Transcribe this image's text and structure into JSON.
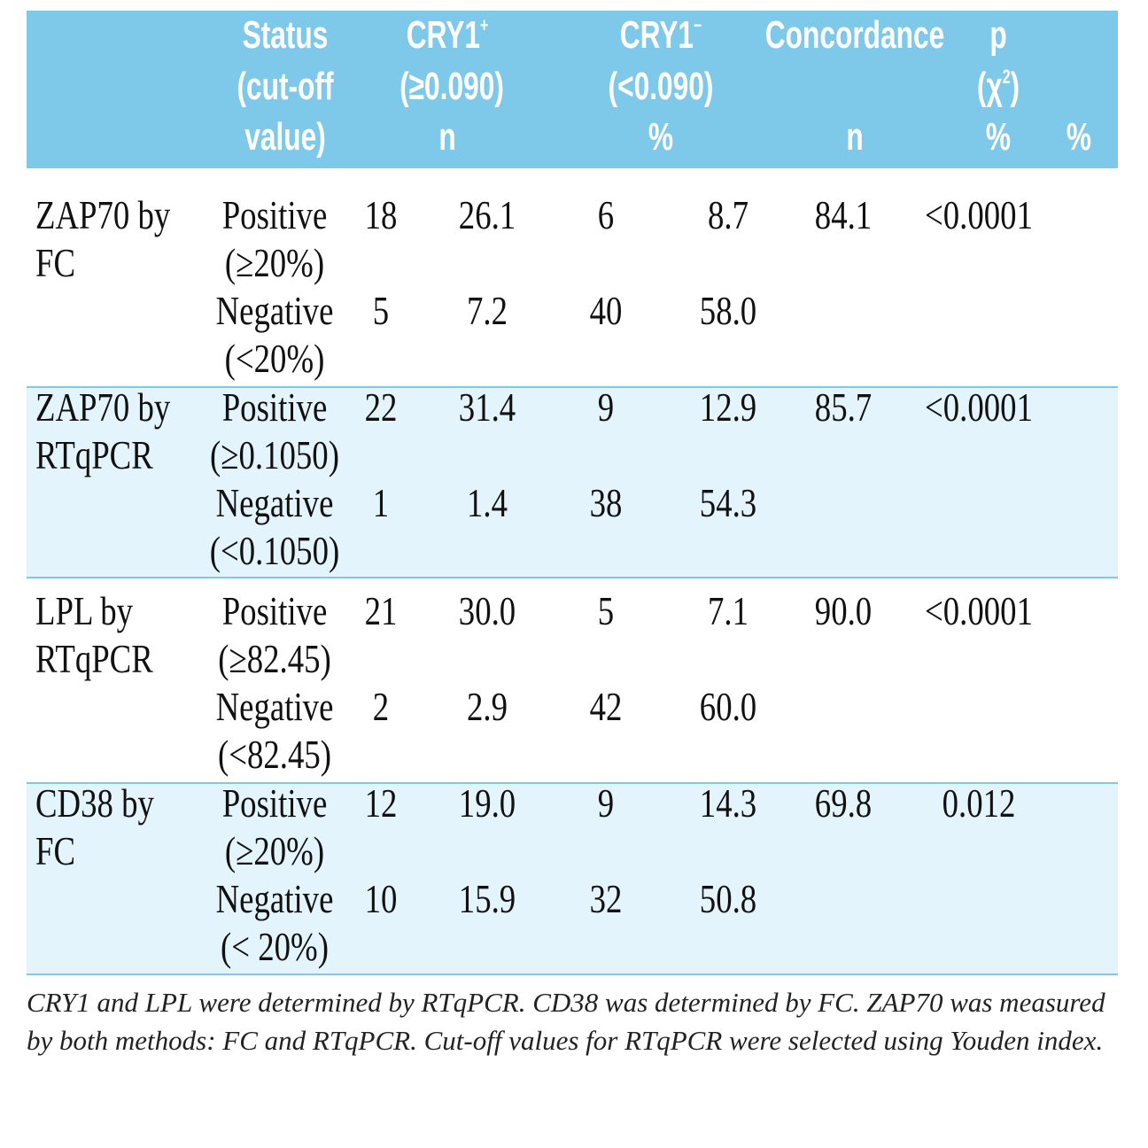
{
  "header": {
    "status": [
      "Status",
      "(cut-off",
      "value)"
    ],
    "cry1_positive": {
      "label": "CRY1",
      "sup": "+",
      "cutoff": "(≥0.090)"
    },
    "cry1_negative": {
      "label": "CRY1",
      "sup": "−",
      "cutoff": "(<0.090)"
    },
    "concordance": "Concordance",
    "p": {
      "label": "p",
      "open": "(χ",
      "sup": "2",
      "close": ")"
    },
    "units": [
      "n",
      "%",
      "n",
      "%",
      "%"
    ]
  },
  "table": {
    "groups": [
      {
        "marker": [
          "ZAP70 by",
          "FC"
        ],
        "shaded": false,
        "concordance": "84.1",
        "p": "<0.0001",
        "rows": [
          {
            "status": "Positive",
            "cutoff": "(≥20%)",
            "cells": [
              "18",
              "26.1",
              "6",
              "8.7"
            ]
          },
          {
            "status": "Negative",
            "cutoff": "(<20%)",
            "cells": [
              "5",
              "7.2",
              "40",
              "58.0"
            ]
          }
        ]
      },
      {
        "marker": [
          "ZAP70 by",
          "RTqPCR"
        ],
        "shaded": true,
        "concordance": "85.7",
        "p": "<0.0001",
        "rows": [
          {
            "status": "Positive",
            "cutoff": "(≥0.1050)",
            "cells": [
              "22",
              "31.4",
              "9",
              "12.9"
            ]
          },
          {
            "status": "Negative",
            "cutoff": "(<0.1050)",
            "cells": [
              "1",
              "1.4",
              "38",
              "54.3"
            ]
          }
        ]
      },
      {
        "marker": [
          "LPL by",
          "RTqPCR"
        ],
        "shaded": false,
        "concordance": "90.0",
        "p": "<0.0001",
        "rows": [
          {
            "status": "Positive",
            "cutoff": "(≥82.45)",
            "cells": [
              "21",
              "30.0",
              "5",
              "7.1"
            ]
          },
          {
            "status": "Negative",
            "cutoff": "(<82.45)",
            "cells": [
              "2",
              "2.9",
              "42",
              "60.0"
            ]
          }
        ]
      },
      {
        "marker": [
          "CD38 by",
          "FC"
        ],
        "shaded": true,
        "concordance": "69.8",
        "p": "0.012",
        "rows": [
          {
            "status": "Positive",
            "cutoff": "(≥20%)",
            "cells": [
              "12",
              "19.0",
              "9",
              "14.3"
            ]
          },
          {
            "status": "Negative",
            "cutoff": "(< 20%)",
            "cells": [
              "10",
              "15.9",
              "32",
              "50.8"
            ]
          }
        ]
      }
    ]
  },
  "footnote": "CRY1 and LPL were determined by RTqPCR. CD38 was determined by FC. ZAP70 was measured by both methods: FC and RTqPCR. Cut-off values for RTqPCR were selected using Youden index."
}
